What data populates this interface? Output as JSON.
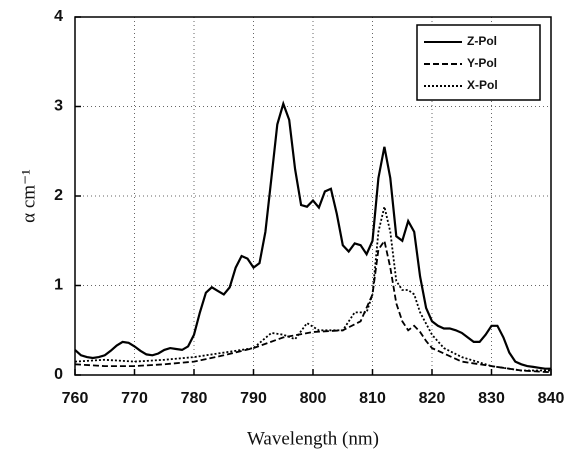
{
  "chart_data": {
    "type": "line",
    "xlabel": "Wavelength (nm)",
    "ylabel": "α cm⁻¹",
    "xlim": [
      760,
      840
    ],
    "xticks": [
      760,
      770,
      780,
      790,
      800,
      810,
      820,
      830,
      840
    ],
    "ylim": [
      0,
      4
    ],
    "yticks": [
      0,
      1,
      2,
      3,
      4
    ],
    "grid": true,
    "legend": "top-right",
    "series": [
      {
        "name": "Z-Pol",
        "color": "#000000",
        "dash": "solid",
        "x": [
          760,
          761,
          762,
          763,
          764,
          765,
          766,
          767,
          768,
          769,
          770,
          771,
          772,
          773,
          774,
          775,
          776,
          777,
          778,
          779,
          780,
          781,
          782,
          783,
          784,
          785,
          786,
          787,
          788,
          789,
          790,
          791,
          792,
          793,
          794,
          795,
          796,
          797,
          798,
          799,
          800,
          801,
          802,
          803,
          804,
          805,
          806,
          807,
          808,
          809,
          810,
          811,
          812,
          813,
          814,
          815,
          816,
          817,
          818,
          819,
          820,
          821,
          822,
          823,
          824,
          825,
          826,
          827,
          828,
          829,
          830,
          831,
          832,
          833,
          834,
          835,
          836,
          837,
          838,
          839,
          840
        ],
        "values": [
          0.28,
          0.22,
          0.2,
          0.19,
          0.2,
          0.22,
          0.27,
          0.33,
          0.37,
          0.36,
          0.32,
          0.27,
          0.23,
          0.22,
          0.24,
          0.28,
          0.3,
          0.29,
          0.28,
          0.32,
          0.45,
          0.7,
          0.92,
          0.98,
          0.94,
          0.9,
          0.98,
          1.2,
          1.33,
          1.3,
          1.2,
          1.25,
          1.6,
          2.2,
          2.8,
          3.03,
          2.85,
          2.3,
          1.9,
          1.88,
          1.95,
          1.87,
          2.05,
          2.08,
          1.8,
          1.45,
          1.38,
          1.47,
          1.45,
          1.35,
          1.5,
          2.2,
          2.55,
          2.2,
          1.55,
          1.5,
          1.72,
          1.6,
          1.1,
          0.75,
          0.6,
          0.55,
          0.52,
          0.52,
          0.5,
          0.47,
          0.42,
          0.37,
          0.37,
          0.45,
          0.55,
          0.55,
          0.42,
          0.25,
          0.15,
          0.12,
          0.1,
          0.09,
          0.08,
          0.07,
          0.07
        ]
      },
      {
        "name": "Y-Pol",
        "color": "#000000",
        "dash": "dashed",
        "x": [
          760,
          765,
          770,
          775,
          780,
          785,
          790,
          795,
          800,
          805,
          808,
          810,
          811,
          812,
          813,
          814,
          815,
          816,
          817,
          818,
          819,
          820,
          825,
          830,
          835,
          840
        ],
        "values": [
          0.12,
          0.1,
          0.1,
          0.12,
          0.15,
          0.22,
          0.3,
          0.42,
          0.48,
          0.5,
          0.6,
          0.9,
          1.4,
          1.5,
          1.2,
          0.8,
          0.6,
          0.5,
          0.55,
          0.48,
          0.38,
          0.3,
          0.15,
          0.1,
          0.05,
          0.03
        ]
      },
      {
        "name": "X-Pol",
        "color": "#000000",
        "dash": "dotted",
        "x": [
          760,
          765,
          770,
          775,
          780,
          785,
          790,
          793,
          795,
          797,
          799,
          801,
          803,
          805,
          807,
          809,
          810,
          811,
          812,
          813,
          814,
          815,
          816,
          817,
          818,
          820,
          822,
          825,
          830,
          835,
          840
        ],
        "values": [
          0.15,
          0.17,
          0.15,
          0.17,
          0.2,
          0.25,
          0.3,
          0.47,
          0.45,
          0.4,
          0.58,
          0.5,
          0.5,
          0.5,
          0.7,
          0.7,
          0.9,
          1.6,
          1.88,
          1.6,
          1.05,
          0.95,
          0.95,
          0.9,
          0.7,
          0.45,
          0.3,
          0.2,
          0.1,
          0.05,
          0.05
        ]
      }
    ]
  }
}
